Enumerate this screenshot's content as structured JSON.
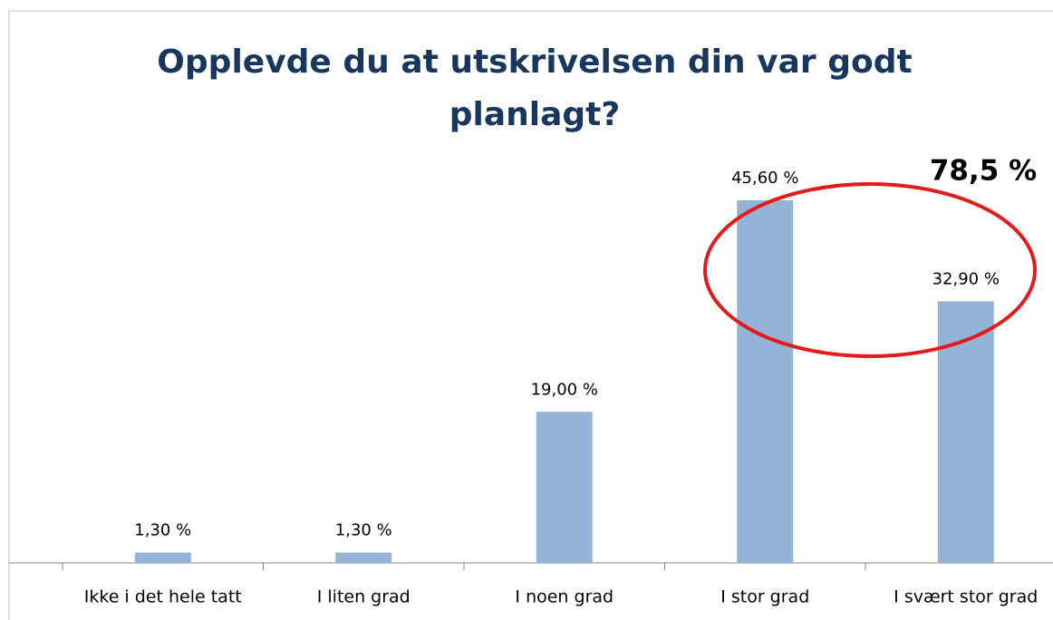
{
  "chart_data": {
    "type": "bar",
    "title": "Opplevde du at utskrivelsen din var godt planlagt?",
    "categories": [
      "Ikke i det hele tatt",
      "I liten grad",
      "I noen grad",
      "I stor grad",
      "I svært stor grad"
    ],
    "values": [
      1.3,
      1.3,
      19.0,
      45.6,
      32.9
    ],
    "value_labels": [
      "1,30 %",
      "1,30 %",
      "19,00 %",
      "45,60 %",
      "32,90 %"
    ],
    "color": "#95b3d7",
    "annotation": "78,5 %"
  }
}
